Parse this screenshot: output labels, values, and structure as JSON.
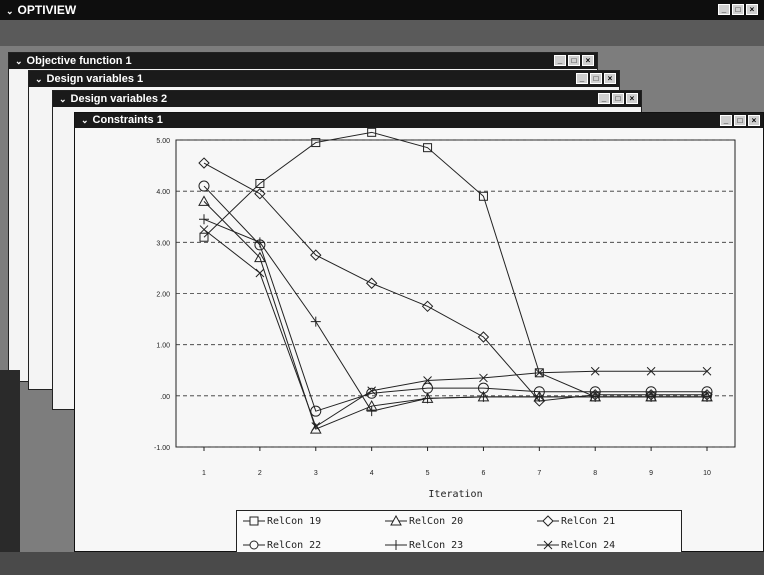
{
  "app": {
    "title": "OPTIVIEW"
  },
  "windows": [
    {
      "title": "Objective function   1"
    },
    {
      "title": "Design variables   1"
    },
    {
      "title": "Design variables   2"
    },
    {
      "title": "Constraints   1"
    }
  ],
  "window_controls": {
    "minimize": "_",
    "maximize": "□",
    "close": "×"
  },
  "chart_data": {
    "type": "line",
    "xlabel": "Iteration",
    "x": [
      1,
      2,
      3,
      4,
      5,
      6,
      7,
      8,
      9,
      10
    ],
    "yticks": [
      "5.00",
      "4.00",
      "3.00",
      "2.00",
      "1.00",
      ".00",
      "-1.00"
    ],
    "ylim": [
      -1.0,
      5.0
    ],
    "grid": "horizontal-dashed",
    "legend_position": "bottom",
    "series": [
      {
        "name": "RelCon 19",
        "marker": "square",
        "values": [
          3.1,
          4.15,
          4.95,
          5.15,
          4.85,
          3.9,
          0.45,
          -0.02,
          -0.02,
          -0.02
        ]
      },
      {
        "name": "RelCon 20",
        "marker": "triangle",
        "values": [
          3.8,
          2.7,
          -0.65,
          -0.2,
          -0.05,
          -0.02,
          -0.02,
          -0.02,
          -0.02,
          -0.02
        ]
      },
      {
        "name": "RelCon 21",
        "marker": "diamond",
        "values": [
          4.55,
          3.95,
          2.75,
          2.2,
          1.75,
          1.15,
          -0.1,
          0.02,
          0.02,
          0.02
        ]
      },
      {
        "name": "RelCon 22",
        "marker": "circle",
        "values": [
          4.1,
          2.95,
          -0.3,
          0.05,
          0.15,
          0.15,
          0.08,
          0.08,
          0.08,
          0.08
        ]
      },
      {
        "name": "RelCon 23",
        "marker": "plus",
        "values": [
          3.45,
          3.0,
          1.45,
          -0.3,
          -0.05,
          -0.02,
          -0.02,
          -0.02,
          -0.02,
          -0.02
        ]
      },
      {
        "name": "RelCon 24",
        "marker": "x",
        "values": [
          3.25,
          2.4,
          -0.6,
          0.1,
          0.3,
          0.35,
          0.45,
          0.48,
          0.48,
          0.48
        ]
      }
    ]
  }
}
